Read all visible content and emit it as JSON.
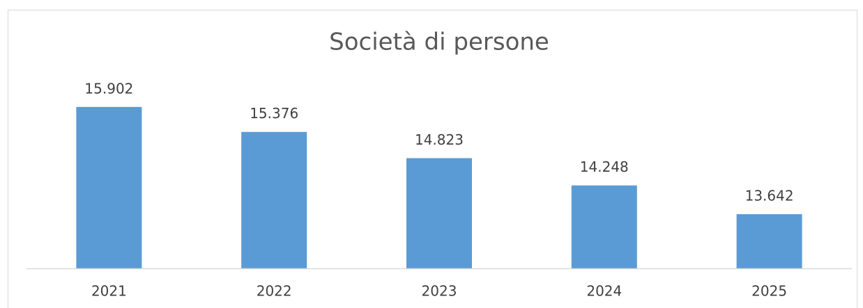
{
  "chart_data": {
    "type": "bar",
    "title": "Società di persone",
    "categories": [
      "2021",
      "2022",
      "2023",
      "2024",
      "2025"
    ],
    "values": [
      15902,
      15376,
      14823,
      14248,
      13642
    ],
    "value_labels": [
      "15.902",
      "15.376",
      "14.823",
      "14.248",
      "13.642"
    ],
    "color": "#5b9bd5",
    "ylim": [
      12500,
      16500
    ]
  }
}
